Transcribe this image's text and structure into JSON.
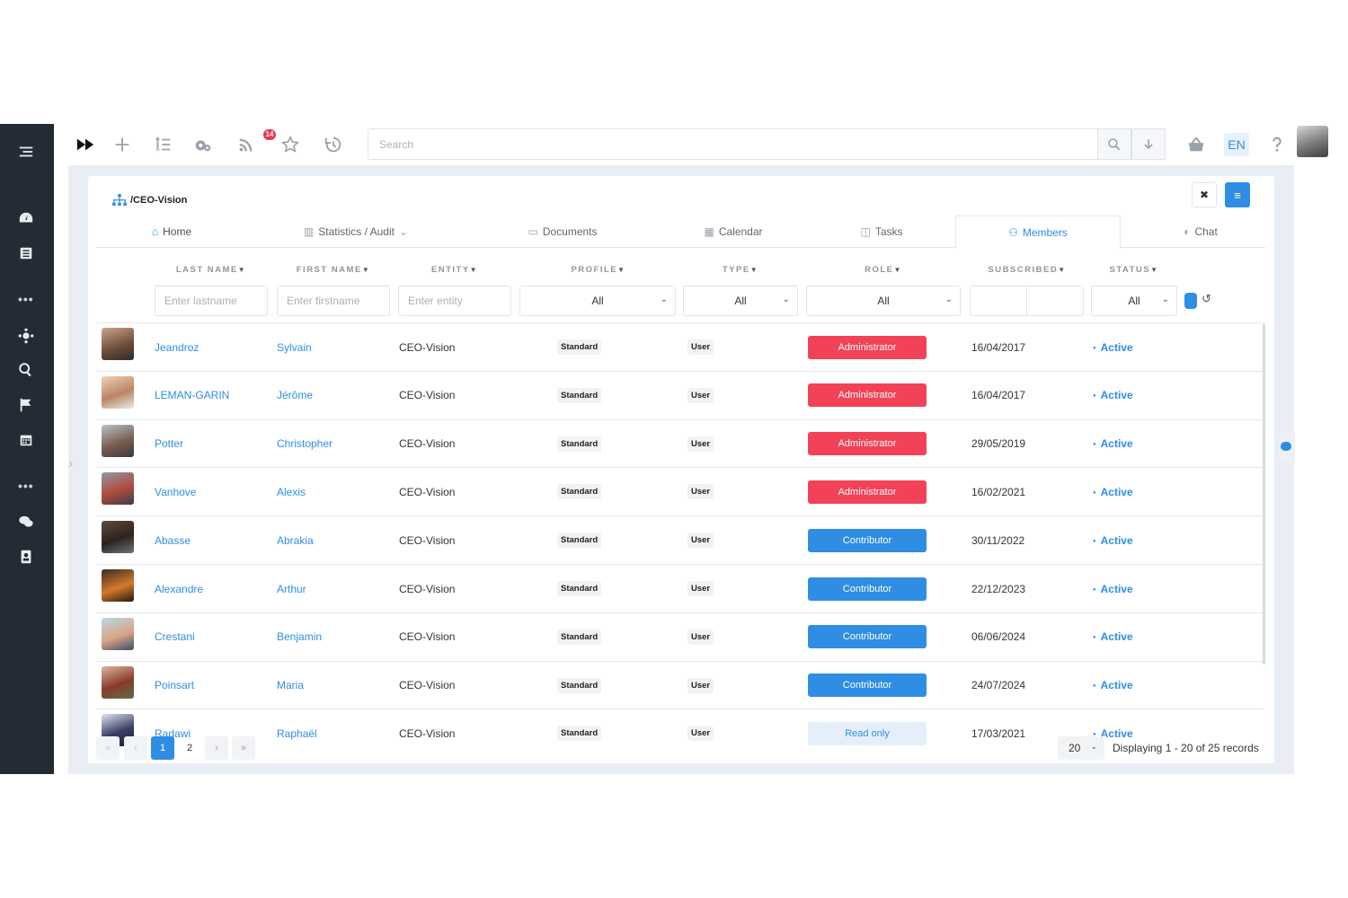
{
  "toolbar": {
    "notification_count": "14",
    "search_placeholder": "Search",
    "language": "EN"
  },
  "breadcrumb": {
    "path": "/CEO-Vision"
  },
  "tabs": [
    {
      "label": "Home",
      "icon": "home-icon"
    },
    {
      "label": "Statistics / Audit",
      "icon": "bar-chart-icon"
    },
    {
      "label": "Documents",
      "icon": "folder-icon"
    },
    {
      "label": "Calendar",
      "icon": "calendar-icon"
    },
    {
      "label": "Tasks",
      "icon": "tasks-icon"
    },
    {
      "label": "Members",
      "icon": "members-icon",
      "active": true
    },
    {
      "label": "Chat",
      "icon": "chat-icon"
    }
  ],
  "columns": [
    "LAST NAME",
    "FIRST NAME",
    "ENTITY",
    "PROFILE",
    "TYPE",
    "ROLE",
    "SUBSCRIBED",
    "STATUS"
  ],
  "filters": {
    "lastname_placeholder": "Enter lastname",
    "firstname_placeholder": "Enter firstname",
    "entity_placeholder": "Enter entity",
    "profile": "All",
    "type": "All",
    "role": "All",
    "status": "All"
  },
  "members": [
    {
      "lastname": "Jeandroz",
      "firstname": "Sylvain",
      "entity": "CEO-Vision",
      "profile": "Standard",
      "type": "User",
      "role": "Administrator",
      "subscribed": "16/04/2017",
      "status": "Active"
    },
    {
      "lastname": "LEMAN-GARIN",
      "firstname": "Jérôme",
      "entity": "CEO-Vision",
      "profile": "Standard",
      "type": "User",
      "role": "Administrator",
      "subscribed": "16/04/2017",
      "status": "Active"
    },
    {
      "lastname": "Potter",
      "firstname": "Christopher",
      "entity": "CEO-Vision",
      "profile": "Standard",
      "type": "User",
      "role": "Administrator",
      "subscribed": "29/05/2019",
      "status": "Active"
    },
    {
      "lastname": "Vanhove",
      "firstname": "Alexis",
      "entity": "CEO-Vision",
      "profile": "Standard",
      "type": "User",
      "role": "Administrator",
      "subscribed": "16/02/2021",
      "status": "Active"
    },
    {
      "lastname": "Abasse",
      "firstname": "Abrakia",
      "entity": "CEO-Vision",
      "profile": "Standard",
      "type": "User",
      "role": "Contributor",
      "subscribed": "30/11/2022",
      "status": "Active"
    },
    {
      "lastname": "Alexandre",
      "firstname": "Arthur",
      "entity": "CEO-Vision",
      "profile": "Standard",
      "type": "User",
      "role": "Contributor",
      "subscribed": "22/12/2023",
      "status": "Active"
    },
    {
      "lastname": "Crestani",
      "firstname": "Benjamin",
      "entity": "CEO-Vision",
      "profile": "Standard",
      "type": "User",
      "role": "Contributor",
      "subscribed": "06/06/2024",
      "status": "Active"
    },
    {
      "lastname": "Poinsart",
      "firstname": "Maria",
      "entity": "CEO-Vision",
      "profile": "Standard",
      "type": "User",
      "role": "Contributor",
      "subscribed": "24/07/2024",
      "status": "Active"
    },
    {
      "lastname": "Radawi",
      "firstname": "Raphaël",
      "entity": "CEO-Vision",
      "profile": "Standard",
      "type": "User",
      "role": "Read only",
      "subscribed": "17/03/2021",
      "status": "Active"
    }
  ],
  "pagination": {
    "first": "«",
    "prev": "‹",
    "next": "›",
    "last": "»",
    "pages": [
      "1",
      "2"
    ],
    "current": "1",
    "per_page": "20",
    "summary": "Displaying 1 - 20 of 25 records"
  },
  "colors": {
    "sidebar": "#242b35",
    "accent": "#2f8de4",
    "admin": "#f14257",
    "contributor": "#2f8de4"
  }
}
